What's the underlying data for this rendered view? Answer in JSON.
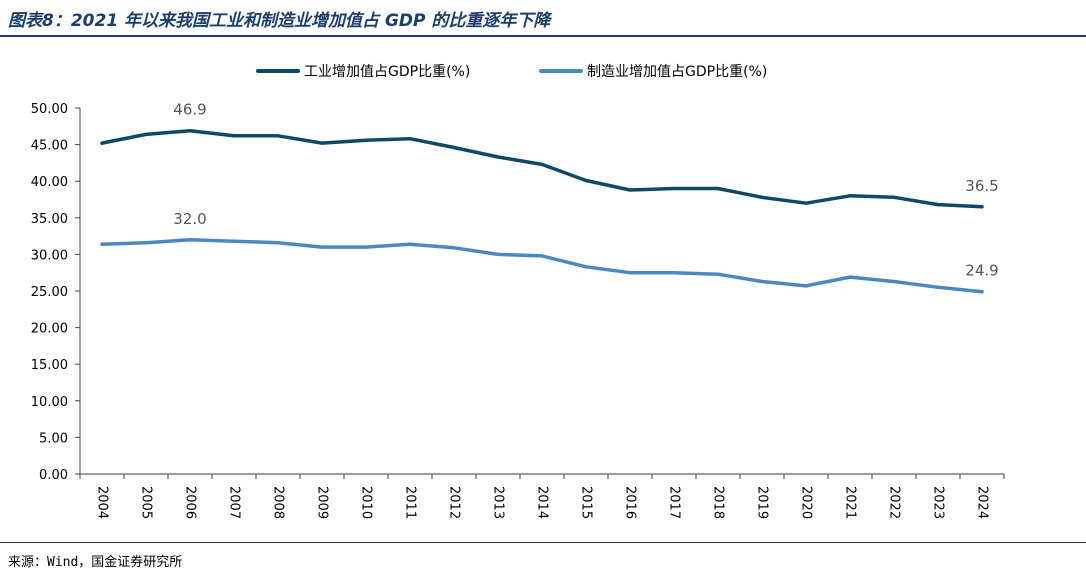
{
  "title": "图表8：2021 年以来我国工业和制造业增加值占 GDP 的比重逐年下降",
  "source": "来源：Wind，国金证券研究所",
  "colors": {
    "title": "#1b3f6b",
    "series_industry": "#0d4a68",
    "series_manufacturing": "#4a88c4",
    "axis": "#444444",
    "annotation": "#555555"
  },
  "chart_data": {
    "type": "line",
    "categories": [
      "2004",
      "2005",
      "2006",
      "2007",
      "2008",
      "2009",
      "2010",
      "2011",
      "2012",
      "2013",
      "2014",
      "2015",
      "2016",
      "2017",
      "2018",
      "2019",
      "2020",
      "2021",
      "2022",
      "2023",
      "2024"
    ],
    "series": [
      {
        "name": "工业增加值占GDP比重(%)",
        "values": [
          45.2,
          46.4,
          46.9,
          46.2,
          46.2,
          45.2,
          45.6,
          45.8,
          44.6,
          43.3,
          42.3,
          40.1,
          38.8,
          39.0,
          39.0,
          37.8,
          37.0,
          38.0,
          37.8,
          36.8,
          36.5
        ]
      },
      {
        "name": "制造业增加值占GDP比重(%)",
        "values": [
          31.4,
          31.6,
          32.0,
          31.8,
          31.6,
          31.0,
          31.0,
          31.4,
          30.9,
          30.0,
          29.8,
          28.3,
          27.5,
          27.5,
          27.3,
          26.3,
          25.7,
          26.9,
          26.3,
          25.5,
          24.9
        ]
      }
    ],
    "annotations": [
      {
        "series": 0,
        "category": "2006",
        "label": "46.9"
      },
      {
        "series": 0,
        "category": "2024",
        "label": "36.5"
      },
      {
        "series": 1,
        "category": "2006",
        "label": "32.0"
      },
      {
        "series": 1,
        "category": "2024",
        "label": "24.9"
      }
    ],
    "y_ticks": [
      "0.00",
      "5.00",
      "10.00",
      "15.00",
      "20.00",
      "25.00",
      "30.00",
      "35.00",
      "40.00",
      "45.00",
      "50.00"
    ],
    "ylim": [
      0,
      50
    ],
    "legend_position": "top-center",
    "grid": false
  }
}
